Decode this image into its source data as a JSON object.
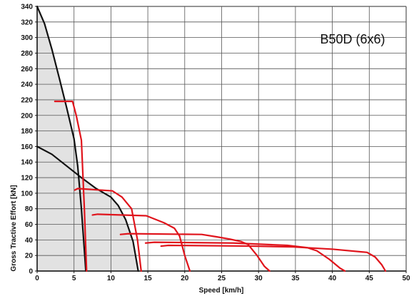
{
  "chart_data": {
    "type": "line",
    "title": "B50D (6x6)",
    "xlabel": "Speed [km/h]",
    "ylabel": "Gross Tractive Effort [kN]",
    "xlim": [
      0,
      50
    ],
    "ylim": [
      0,
      340
    ],
    "xticks": [
      0,
      5,
      10,
      15,
      20,
      25,
      30,
      35,
      40,
      45,
      50
    ],
    "yticks": [
      0,
      20,
      40,
      60,
      80,
      100,
      120,
      140,
      160,
      180,
      200,
      220,
      240,
      260,
      280,
      300,
      320,
      340
    ],
    "grid": true,
    "legend": "none",
    "colors": {
      "envelope": "#111111",
      "gear": "#e0141c",
      "fill": "#e2e2e2",
      "grid": "#555555"
    },
    "series": [
      {
        "role": "envelope-upper",
        "points": [
          [
            0,
            340
          ],
          [
            1,
            318
          ],
          [
            2,
            285
          ],
          [
            3,
            248
          ],
          [
            4,
            210
          ],
          [
            5,
            170
          ],
          [
            5.5,
            135
          ],
          [
            6,
            80
          ],
          [
            6.3,
            40
          ],
          [
            6.6,
            0
          ]
        ]
      },
      {
        "role": "envelope-lower",
        "points": [
          [
            0,
            160
          ],
          [
            2,
            150
          ],
          [
            4,
            135
          ],
          [
            6,
            120
          ],
          [
            8,
            106
          ],
          [
            10,
            95
          ],
          [
            11,
            84
          ],
          [
            12,
            66
          ],
          [
            13,
            38
          ],
          [
            13.7,
            0
          ]
        ]
      },
      {
        "role": "gear-1",
        "points": [
          [
            2.4,
            218
          ],
          [
            4.8,
            218
          ],
          [
            5.3,
            200
          ],
          [
            6.0,
            168
          ],
          [
            6.4,
            80
          ],
          [
            6.7,
            0
          ]
        ]
      },
      {
        "role": "gear-2",
        "points": [
          [
            5.1,
            104
          ],
          [
            5.5,
            106
          ],
          [
            10.2,
            103
          ],
          [
            11.5,
            95
          ],
          [
            12.8,
            80
          ],
          [
            13.6,
            40
          ],
          [
            14.1,
            0
          ]
        ]
      },
      {
        "role": "gear-3",
        "points": [
          [
            7.5,
            72
          ],
          [
            8.2,
            73
          ],
          [
            14.8,
            71
          ],
          [
            17.2,
            62
          ],
          [
            18.6,
            55
          ],
          [
            19.3,
            45
          ],
          [
            20.0,
            20
          ],
          [
            20.7,
            0
          ]
        ]
      },
      {
        "role": "gear-4",
        "points": [
          [
            11.3,
            47
          ],
          [
            12.4,
            48
          ],
          [
            22.3,
            47
          ],
          [
            24.3,
            44
          ],
          [
            26.1,
            41
          ],
          [
            27.6,
            38
          ],
          [
            28.6,
            34
          ],
          [
            29.8,
            20
          ],
          [
            30.8,
            6
          ],
          [
            31.5,
            0
          ]
        ]
      },
      {
        "role": "gear-5",
        "points": [
          [
            14.7,
            36
          ],
          [
            15.9,
            37
          ],
          [
            26.6,
            36
          ],
          [
            33.9,
            33
          ],
          [
            36.6,
            30
          ],
          [
            37.9,
            26
          ],
          [
            39.6,
            15
          ],
          [
            41.0,
            4
          ],
          [
            41.7,
            0
          ]
        ]
      },
      {
        "role": "gear-6",
        "points": [
          [
            16.8,
            32
          ],
          [
            17.8,
            33
          ],
          [
            29.1,
            32
          ],
          [
            34.7,
            31
          ],
          [
            40.1,
            28
          ],
          [
            44.7,
            24
          ],
          [
            45.8,
            18
          ],
          [
            46.7,
            8
          ],
          [
            47.2,
            0
          ]
        ]
      }
    ]
  }
}
